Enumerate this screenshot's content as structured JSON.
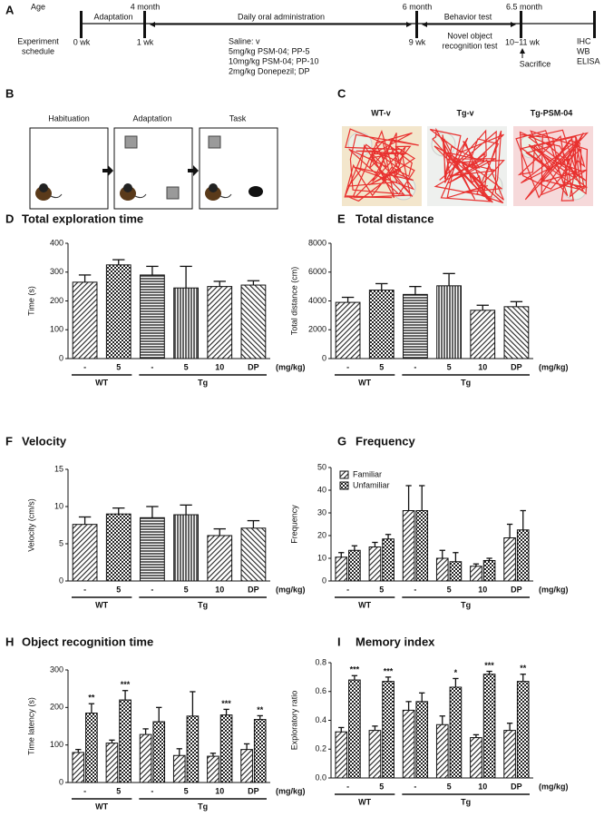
{
  "timeline": {
    "label": "A",
    "age": "Age",
    "ages": [
      "4 month",
      "6 month",
      "6.5 month"
    ],
    "phases": [
      "Adaptation",
      "Daily oral administration",
      "Behavior test"
    ],
    "schedule": [
      "Experiment",
      "schedule"
    ],
    "weeks": [
      "0 wk",
      "1 wk",
      "9 wk",
      "10~11 wk"
    ],
    "doses": [
      "Saline: v",
      "5mg/kg PSM-04; PP-5",
      "10mg/kg PSM-04; PP-10",
      "2mg/kg Donepezil; DP"
    ],
    "test": [
      "Novel object",
      "recognition test"
    ],
    "sacrifice": "Sacrifice",
    "analyses": [
      "IHC",
      "WB",
      "ELISA"
    ]
  },
  "protocol": {
    "label": "B",
    "stages": [
      "Habituation",
      "Adaptation",
      "Task"
    ]
  },
  "tracks": {
    "label": "C",
    "groups": [
      "WT-v",
      "Tg-v",
      "Tg-PSM-04"
    ]
  },
  "chart_data": [
    {
      "type": "bar",
      "label": "D",
      "title": "Total exploration time",
      "y_label": "Time (s)",
      "categories": [
        "-",
        "5",
        "-",
        "5",
        "10",
        "DP"
      ],
      "groups": [
        "WT",
        "Tg"
      ],
      "unit": "(mg/kg)",
      "ylim": [
        0,
        400
      ],
      "yticks": [
        0,
        100,
        200,
        300,
        400
      ],
      "patterns": [
        "diagonal",
        "check",
        "horizontal",
        "vertical",
        "diagonal",
        "diagonal-reverse"
      ],
      "series": [
        {
          "values": [
            265,
            325,
            290,
            245,
            250,
            255
          ],
          "errors": [
            25,
            18,
            30,
            75,
            18,
            15
          ]
        }
      ]
    },
    {
      "type": "bar",
      "label": "E",
      "title": "Total distance",
      "y_label": "Total distance (cm)",
      "categories": [
        "-",
        "5",
        "-",
        "5",
        "10",
        "DP"
      ],
      "groups": [
        "WT",
        "Tg"
      ],
      "unit": "(mg/kg)",
      "ylim": [
        0,
        8000
      ],
      "yticks": [
        0,
        2000,
        4000,
        6000,
        8000
      ],
      "patterns": [
        "diagonal",
        "check",
        "horizontal",
        "vertical",
        "diagonal",
        "diagonal-reverse"
      ],
      "series": [
        {
          "values": [
            3900,
            4750,
            4450,
            5050,
            3350,
            3600
          ],
          "errors": [
            350,
            450,
            550,
            850,
            350,
            350
          ]
        }
      ]
    },
    {
      "type": "bar",
      "label": "F",
      "title": "Velocity",
      "y_label": "Velocity (cm/s)",
      "categories": [
        "-",
        "5",
        "-",
        "5",
        "10",
        "DP"
      ],
      "groups": [
        "WT",
        "Tg"
      ],
      "unit": "(mg/kg)",
      "ylim": [
        0,
        15
      ],
      "yticks": [
        0,
        5,
        10,
        15
      ],
      "patterns": [
        "diagonal",
        "check",
        "horizontal",
        "vertical",
        "diagonal",
        "diagonal-reverse"
      ],
      "series": [
        {
          "values": [
            7.6,
            9.0,
            8.5,
            8.9,
            6.1,
            7.1
          ],
          "errors": [
            1.0,
            0.8,
            1.5,
            1.3,
            0.9,
            1.0
          ]
        }
      ]
    },
    {
      "type": "grouped-bar",
      "label": "G",
      "title": "Frequency",
      "y_label": "Frequency",
      "categories": [
        "-",
        "5",
        "-",
        "5",
        "10",
        "DP"
      ],
      "groups": [
        "WT",
        "Tg"
      ],
      "unit": "(mg/kg)",
      "ylim": [
        0,
        50
      ],
      "yticks": [
        0,
        10,
        20,
        30,
        40,
        50
      ],
      "legend": "top-left",
      "series": [
        {
          "name": "Familiar",
          "pattern": "diagonal",
          "values": [
            10.5,
            15,
            31,
            10,
            6.5,
            19
          ],
          "errors": [
            2,
            2,
            11,
            3.5,
            1,
            6
          ]
        },
        {
          "name": "Unfamiliar",
          "pattern": "check",
          "values": [
            13.5,
            18.5,
            31,
            8.5,
            9,
            22.5
          ],
          "errors": [
            2,
            2,
            11,
            4,
            1,
            8.5
          ]
        }
      ]
    },
    {
      "type": "grouped-bar",
      "label": "H",
      "title": "Object recognition time",
      "y_label": "Time latency (s)",
      "categories": [
        "-",
        "5",
        "-",
        "5",
        "10",
        "DP"
      ],
      "groups": [
        "WT",
        "Tg"
      ],
      "unit": "(mg/kg)",
      "ylim": [
        0,
        300
      ],
      "yticks": [
        0,
        100,
        200,
        300
      ],
      "significance": [
        "**",
        "***",
        null,
        null,
        "***",
        "**"
      ],
      "series": [
        {
          "pattern": "diagonal",
          "values": [
            80,
            105,
            128,
            72,
            70,
            88
          ],
          "errors": [
            8,
            8,
            15,
            18,
            8,
            15
          ]
        },
        {
          "pattern": "check",
          "values": [
            185,
            220,
            162,
            177,
            180,
            168
          ],
          "errors": [
            25,
            25,
            38,
            65,
            15,
            10
          ]
        }
      ]
    },
    {
      "type": "grouped-bar",
      "label": "I",
      "title": "Memory index",
      "y_label": "Exploratory ratio",
      "categories": [
        "-",
        "5",
        "-",
        "5",
        "10",
        "DP"
      ],
      "groups": [
        "WT",
        "Tg"
      ],
      "unit": "(mg/kg)",
      "ylim": [
        0,
        0.8
      ],
      "yticks": [
        {
          "value": 0,
          "label": "0.0"
        },
        0.2,
        0.4,
        0.6,
        0.8
      ],
      "significance": [
        "***",
        "***",
        null,
        "*",
        "***",
        "**"
      ],
      "series": [
        {
          "pattern": "diagonal",
          "values": [
            0.32,
            0.33,
            0.47,
            0.37,
            0.28,
            0.33
          ],
          "errors": [
            0.03,
            0.03,
            0.06,
            0.06,
            0.02,
            0.05
          ]
        },
        {
          "pattern": "check",
          "values": [
            0.68,
            0.67,
            0.53,
            0.63,
            0.72,
            0.67
          ],
          "errors": [
            0.03,
            0.03,
            0.06,
            0.06,
            0.02,
            0.05
          ]
        }
      ]
    }
  ]
}
